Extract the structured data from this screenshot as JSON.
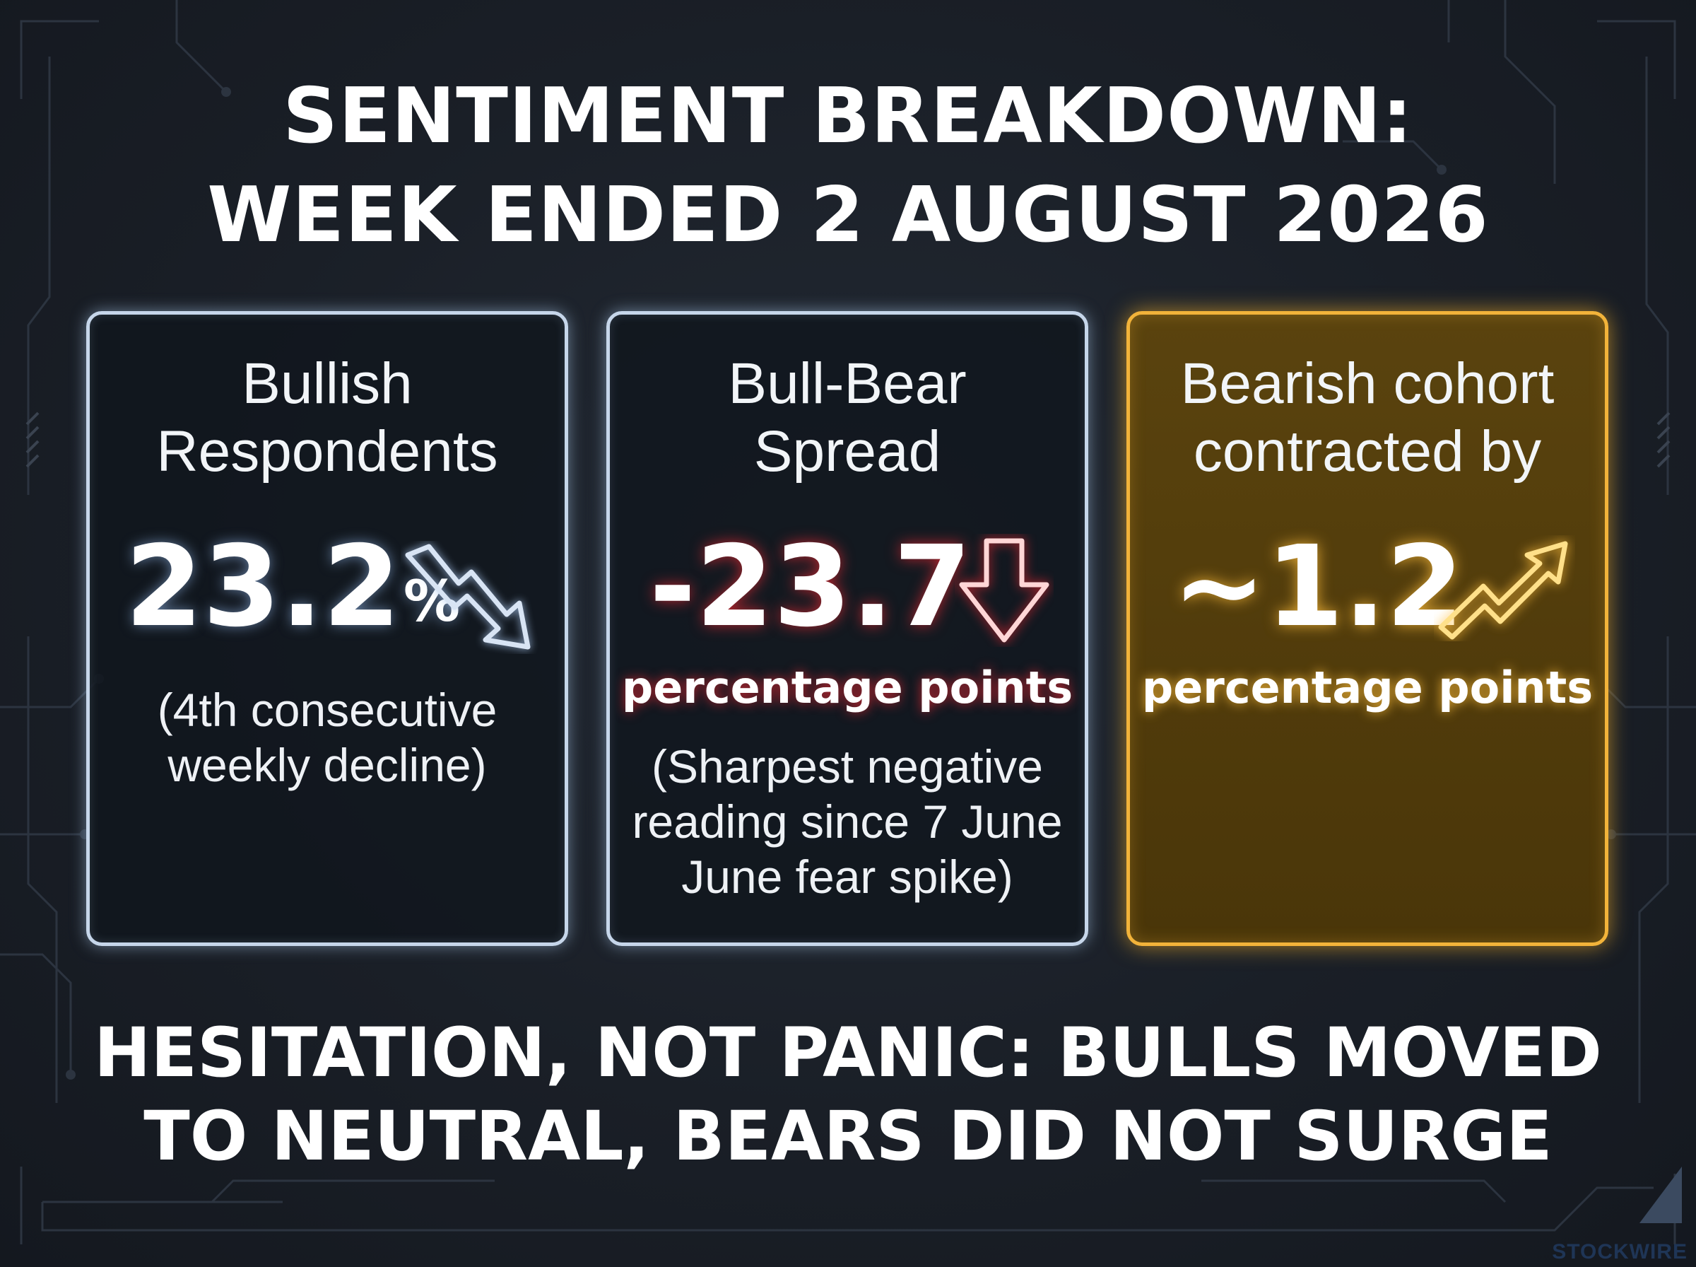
{
  "title": {
    "line1": "SENTIMENT BREAKDOWN:",
    "line2": "WEEK ENDED 2 AUGUST 2026"
  },
  "cards": [
    {
      "label_line1": "Bullish",
      "label_line2": "Respondents",
      "value": "23.2",
      "value_suffix": "%",
      "note_line1": "(4th consecutive",
      "note_line2": "weekly decline)",
      "arrow_icon": "zigzag-down-arrow-icon",
      "accent": "#c6d6ea"
    },
    {
      "label_line1": "Bull-Bear",
      "label_line2": "Spread",
      "value": "-23.7",
      "unit": "percentage points",
      "note_line1": "(Sharpest negative",
      "note_line2": "reading since 7 June",
      "note_line3": "June fear spike)",
      "arrow_icon": "down-arrow-icon",
      "accent": "#e0303c"
    },
    {
      "label_line1": "Bearish cohort",
      "label_line2": "contracted by",
      "value": "~1.2",
      "unit": "percentage points",
      "arrow_icon": "zigzag-up-arrow-icon",
      "accent": "#f2b33a"
    }
  ],
  "footer": {
    "line1": "HESITATION, NOT PANIC: BULLS MOVED",
    "line2": "TO NEUTRAL, BEARS DID NOT SURGE"
  },
  "brand": "STOCKWIRE"
}
